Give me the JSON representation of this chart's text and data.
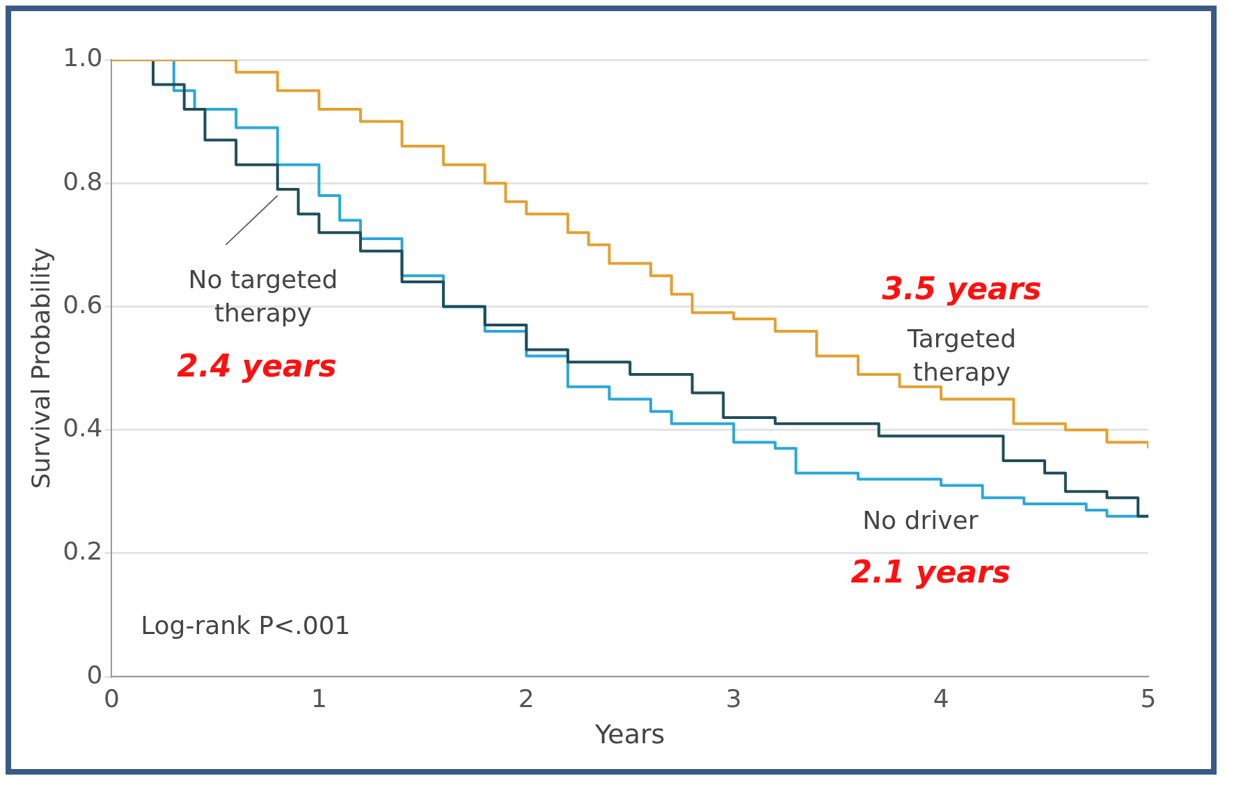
{
  "chart_data": {
    "type": "step",
    "xlabel": "Years",
    "ylabel": "Survival Probability",
    "xlim": [
      0,
      5
    ],
    "xticks": [
      0,
      1,
      2,
      3,
      4,
      5
    ],
    "ylim": [
      0,
      1
    ],
    "yticks": [
      0,
      0.2,
      0.4,
      0.6,
      0.8,
      {
        "value": 1,
        "label": "1.0"
      }
    ],
    "grid": "y",
    "legend": false,
    "annotations": [
      "Log-rank P<.001",
      "3.5 years",
      "2.4 years",
      "2.1 years"
    ],
    "series": [
      {
        "name": "Targeted therapy",
        "color": "#e3a030",
        "x": [
          0,
          0.5,
          0.6,
          0.8,
          1.0,
          1.2,
          1.4,
          1.6,
          1.8,
          1.9,
          2.0,
          2.2,
          2.3,
          2.4,
          2.6,
          2.7,
          2.8,
          3.0,
          3.2,
          3.4,
          3.6,
          3.8,
          4.0,
          4.3,
          4.35,
          4.6,
          4.8,
          5.0
        ],
        "values": [
          1.0,
          1.0,
          0.98,
          0.95,
          0.92,
          0.9,
          0.86,
          0.83,
          0.8,
          0.77,
          0.75,
          0.72,
          0.7,
          0.67,
          0.65,
          0.62,
          0.59,
          0.58,
          0.56,
          0.52,
          0.49,
          0.47,
          0.45,
          0.45,
          0.41,
          0.4,
          0.38,
          0.37
        ]
      },
      {
        "name": "No targeted therapy",
        "color": "#1f4e5a",
        "x": [
          0,
          0.2,
          0.35,
          0.45,
          0.6,
          0.8,
          0.9,
          1.0,
          1.2,
          1.4,
          1.6,
          1.8,
          2.0,
          2.2,
          2.5,
          2.8,
          2.95,
          3.2,
          3.6,
          3.7,
          4.2,
          4.3,
          4.5,
          4.6,
          4.8,
          4.95,
          5.0
        ],
        "values": [
          1.0,
          0.96,
          0.92,
          0.87,
          0.83,
          0.79,
          0.75,
          0.72,
          0.69,
          0.64,
          0.6,
          0.57,
          0.53,
          0.51,
          0.49,
          0.46,
          0.42,
          0.41,
          0.41,
          0.39,
          0.39,
          0.35,
          0.33,
          0.3,
          0.29,
          0.26,
          0.26
        ]
      },
      {
        "name": "No driver",
        "color": "#2aa8d8",
        "x": [
          0,
          0.3,
          0.4,
          0.6,
          0.8,
          1.0,
          1.1,
          1.2,
          1.4,
          1.6,
          1.8,
          2.0,
          2.2,
          2.4,
          2.6,
          2.7,
          2.9,
          3.0,
          3.2,
          3.3,
          3.6,
          4.0,
          4.2,
          4.4,
          4.7,
          4.8,
          5.0
        ],
        "values": [
          1.0,
          0.95,
          0.92,
          0.89,
          0.83,
          0.78,
          0.74,
          0.71,
          0.65,
          0.6,
          0.56,
          0.52,
          0.47,
          0.45,
          0.43,
          0.41,
          0.41,
          0.38,
          0.37,
          0.33,
          0.32,
          0.31,
          0.29,
          0.28,
          0.27,
          0.26,
          0.26
        ]
      }
    ]
  }
}
